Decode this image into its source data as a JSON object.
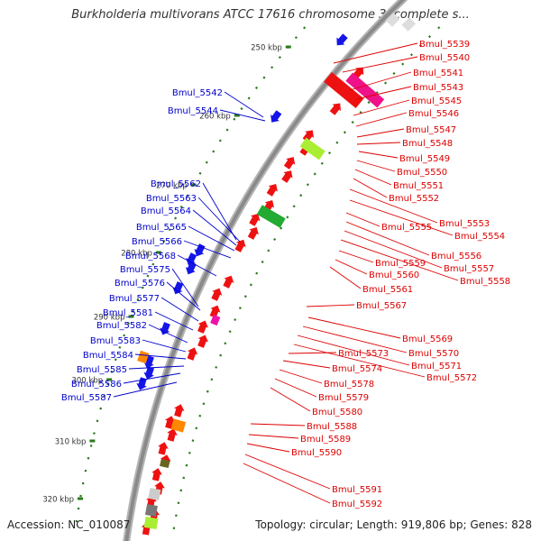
{
  "title": "Burkholderia multivorans ATCC 17616 chromosome 3, complete s...",
  "footer": {
    "accession": "Accession: NC_010087",
    "summary": "Topology: circular; Length: 919,806 bp; Genes: 828"
  },
  "colors": {
    "forward_label": "#0000cc",
    "reverse_label": "#dd0000",
    "forward_feature": "#1515e6",
    "reverse_feature": "#ee1111",
    "backbone": "#8a8a8a",
    "tick": "#2a7a1a"
  },
  "scale_ticks": [
    "250 kbp",
    "260 kbp",
    "270 kbp",
    "280 kbp",
    "290 kbp",
    "300 kbp",
    "310 kbp",
    "320 kbp"
  ],
  "forward_genes": [
    "Bmul_5542",
    "Bmul_5544",
    "Bmul_5562",
    "Bmul_5563",
    "Bmul_5564",
    "Bmul_5565",
    "Bmul_5566",
    "Bmul_5568",
    "Bmul_5575",
    "Bmul_5576",
    "Bmul_5577",
    "Bmul_5581",
    "Bmul_5582",
    "Bmul_5583",
    "Bmul_5584",
    "Bmul_5585",
    "Bmul_5586",
    "Bmul_5587"
  ],
  "reverse_genes": [
    "Bmul_5539",
    "Bmul_5540",
    "Bmul_5541",
    "Bmul_5543",
    "Bmul_5545",
    "Bmul_5546",
    "Bmul_5547",
    "Bmul_5548",
    "Bmul_5549",
    "Bmul_5550",
    "Bmul_5551",
    "Bmul_5552",
    "Bmul_5553",
    "Bmul_5554",
    "Bmul_5555",
    "Bmul_5556",
    "Bmul_5557",
    "Bmul_5558",
    "Bmul_5559",
    "Bmul_5560",
    "Bmul_5561",
    "Bmul_5567",
    "Bmul_5569",
    "Bmul_5570",
    "Bmul_5571",
    "Bmul_5572",
    "Bmul_5573",
    "Bmul_5574",
    "Bmul_5578",
    "Bmul_5579",
    "Bmul_5580",
    "Bmul_5588",
    "Bmul_5589",
    "Bmul_5590",
    "Bmul_5591",
    "Bmul_5592"
  ]
}
